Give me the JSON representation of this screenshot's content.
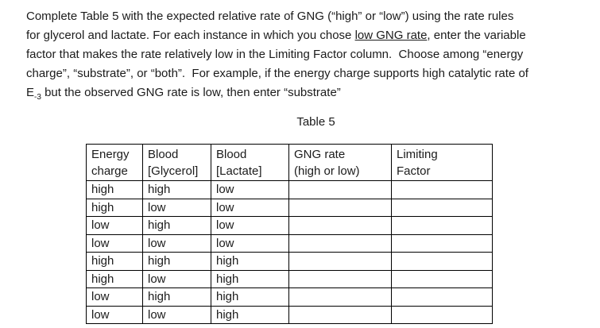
{
  "page": {
    "background": "#ffffff",
    "text_color": "#1b1b1b",
    "border_color": "#000000"
  },
  "paragraph": {
    "lines": [
      [
        {
          "t": "Complete Table 5 with the expected relative rate of GNG (“high” or “low”) using the rate rules"
        }
      ],
      [
        {
          "t": "for glycerol and lactate. For each instance in which you chose "
        },
        {
          "t": "low GNG rate",
          "s": "underline"
        },
        {
          "t": ", enter the variable"
        }
      ],
      [
        {
          "t": "factor that makes the rate relatively low in the Limiting Factor column.  Choose among “energy"
        }
      ],
      [
        {
          "t": "charge”, “substrate”, or “both”.  For example, if the energy charge supports high catalytic rate of"
        }
      ],
      [
        {
          "t": "E"
        },
        {
          "t": "-3",
          "s": "subscript"
        },
        {
          "t": " but the observed GNG rate is low, then enter “substrate”"
        }
      ]
    ]
  },
  "table": {
    "caption": "Table 5",
    "headers": [
      "Energy\ncharge",
      "Blood\n[Glycerol]",
      "Blood\n[Lactate]",
      "GNG rate\n(high or low)",
      "Limiting\nFactor"
    ],
    "header_names": [
      "column-header-energy-charge",
      "column-header-blood-glycerol",
      "column-header-blood-lactate",
      "column-header-gng-rate",
      "column-header-limiting-factor"
    ],
    "rows": [
      [
        "high",
        "high",
        "low",
        "",
        ""
      ],
      [
        "high",
        "low",
        "low",
        "",
        ""
      ],
      [
        "low",
        "high",
        "low",
        "",
        ""
      ],
      [
        "low",
        "low",
        "low",
        "",
        ""
      ],
      [
        "high",
        "high",
        "high",
        "",
        ""
      ],
      [
        "high",
        "low",
        "high",
        "",
        ""
      ],
      [
        "low",
        "high",
        "high",
        "",
        ""
      ],
      [
        "low",
        "low",
        "high",
        "",
        ""
      ]
    ],
    "fill_in_cell_names": [
      "gng-rate-input-cell",
      "limiting-factor-input-cell"
    ]
  }
}
